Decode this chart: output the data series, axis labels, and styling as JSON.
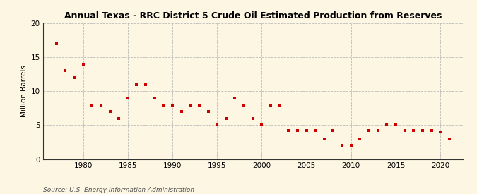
{
  "title": "Annual Texas - RRC District 5 Crude Oil Estimated Production from Reserves",
  "ylabel": "Million Barrels",
  "source": "Source: U.S. Energy Information Administration",
  "background_color": "#fdf6e3",
  "plot_bg_color": "#fdf6e3",
  "marker_color": "#cc0000",
  "years": [
    1977,
    1978,
    1979,
    1980,
    1981,
    1982,
    1983,
    1984,
    1985,
    1986,
    1987,
    1988,
    1989,
    1990,
    1991,
    1992,
    1993,
    1994,
    1995,
    1996,
    1997,
    1998,
    1999,
    2000,
    2001,
    2002,
    2003,
    2004,
    2005,
    2006,
    2007,
    2008,
    2009,
    2010,
    2011,
    2012,
    2013,
    2014,
    2015,
    2016,
    2017,
    2018,
    2019,
    2020,
    2021
  ],
  "values": [
    17.0,
    13.0,
    12.0,
    14.0,
    8.0,
    8.0,
    7.0,
    6.0,
    9.0,
    11.0,
    11.0,
    9.0,
    8.0,
    8.0,
    7.0,
    8.0,
    8.0,
    7.0,
    5.0,
    6.0,
    9.0,
    8.0,
    6.0,
    5.0,
    8.0,
    8.0,
    4.2,
    4.2,
    4.2,
    4.2,
    3.0,
    4.2,
    2.0,
    2.0,
    3.0,
    4.2,
    4.2,
    5.0,
    5.0,
    4.2,
    4.2,
    4.2,
    4.2,
    4.0,
    3.0
  ],
  "ylim": [
    0,
    20
  ],
  "yticks": [
    0,
    5,
    10,
    15,
    20
  ],
  "xlim": [
    1975.5,
    2022.5
  ],
  "xticks": [
    1980,
    1985,
    1990,
    1995,
    2000,
    2005,
    2010,
    2015,
    2020
  ],
  "grid_color": "#bbbbbb",
  "spine_color": "#333333"
}
